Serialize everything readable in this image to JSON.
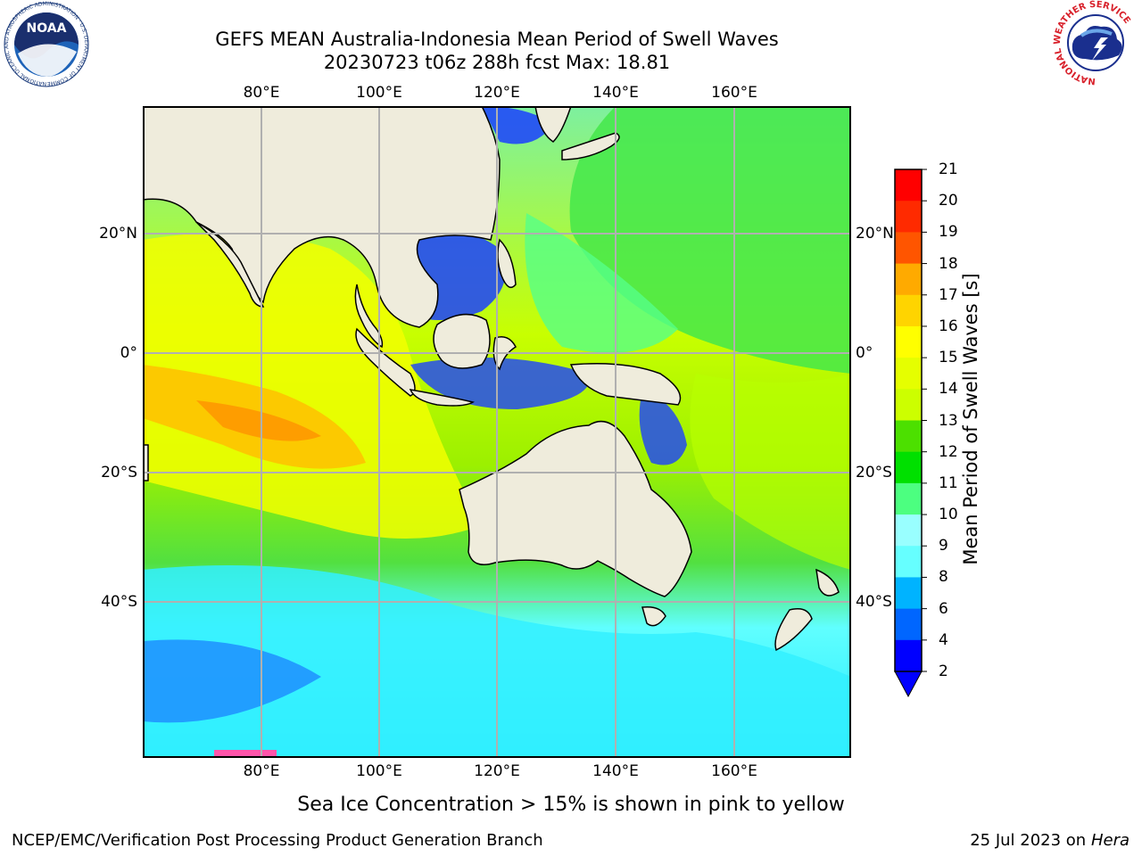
{
  "header": {
    "title_line1": "GEFS MEAN Australia-Indonesia Mean Period of Swell Waves",
    "title_line2": "20230723 t06z 288h fcst   Max: 18.81"
  },
  "logos": {
    "noaa_text": "NOAA",
    "nws_ring_text": "NATIONAL WEATHER SERVICE",
    "noaa_ring_text": "NATIONAL OCEANIC AND ATMOSPHERIC ADMINISTRATION · U.S. DEPARTMENT OF COMMERCE"
  },
  "map": {
    "lon_labels": [
      "80°E",
      "100°E",
      "120°E",
      "140°E",
      "160°E"
    ],
    "lat_labels": [
      "20°N",
      "0°",
      "20°S",
      "40°S"
    ],
    "land_color": "#efecdc",
    "grid_color": "#b0b0b0"
  },
  "colorbar": {
    "title": "Mean Period of Swell Waves [s]",
    "tick_labels": [
      "21",
      "20",
      "19",
      "18",
      "17",
      "16",
      "15",
      "14",
      "13",
      "12",
      "11",
      "10",
      "9",
      "8",
      "6",
      "4",
      "2"
    ],
    "colors_top_to_bottom": [
      "#ff0000",
      "#ff2a00",
      "#ff5500",
      "#ff8000",
      "#ffaa00",
      "#ffd400",
      "#ffff00",
      "#e5ff00",
      "#ccff00",
      "#99f000",
      "#4ce000",
      "#00e000",
      "#4cff80",
      "#99ffff",
      "#66ffff",
      "#00ffff",
      "#00b3ff",
      "#0066ff",
      "#0000ff"
    ],
    "extend_color": "#0000ff"
  },
  "footer": {
    "note": "Sea Ice Concentration > 15% is shown in pink to yellow",
    "credit": "NCEP/EMC/Verification Post Processing Product Generation Branch",
    "date": "25 Jul 2023 on ",
    "machine": "Hera"
  }
}
